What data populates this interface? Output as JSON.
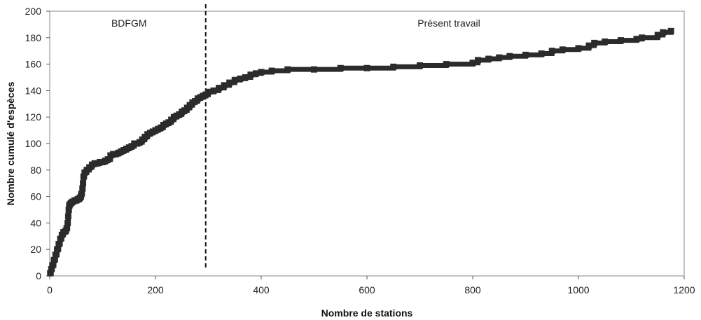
{
  "chart_data": {
    "type": "line",
    "xlabel": "Nombre de stations",
    "ylabel": "Nombre cumulé d'espèces",
    "xlim": [
      0,
      1200
    ],
    "ylim": [
      0,
      200
    ],
    "x_ticks": [
      0,
      200,
      400,
      600,
      800,
      1000,
      1200
    ],
    "y_ticks": [
      0,
      20,
      40,
      60,
      80,
      100,
      120,
      140,
      160,
      180,
      200
    ],
    "grid": false,
    "divider_x": 295,
    "annotations": [
      {
        "text": "BDFGM",
        "x": 150,
        "y": 191
      },
      {
        "text": "Présent travail",
        "x": 755,
        "y": 191
      }
    ],
    "series": [
      {
        "color": "#2b2b2b",
        "marker": "square",
        "x": [
          1,
          3,
          5,
          8,
          11,
          14,
          17,
          20,
          23,
          26,
          30,
          32,
          34,
          35,
          36,
          37,
          38,
          40,
          43,
          47,
          50,
          53,
          55,
          57,
          59,
          60,
          62,
          63,
          64,
          66,
          70,
          75,
          80,
          85,
          90,
          95,
          100,
          105,
          110,
          115,
          120,
          125,
          130,
          135,
          140,
          145,
          150,
          155,
          160,
          165,
          170,
          175,
          180,
          185,
          190,
          195,
          200,
          205,
          210,
          215,
          220,
          225,
          230,
          235,
          240,
          245,
          250,
          255,
          260,
          265,
          270,
          275,
          280,
          285,
          290,
          295,
          300,
          310,
          320,
          330,
          340,
          350,
          360,
          370,
          380,
          390,
          400,
          420,
          450,
          500,
          550,
          600,
          650,
          700,
          750,
          800,
          810,
          830,
          850,
          870,
          900,
          930,
          950,
          970,
          1000,
          1020,
          1030,
          1050,
          1080,
          1110,
          1120,
          1150,
          1160,
          1175
        ],
        "y": [
          2,
          5,
          8,
          12,
          16,
          20,
          24,
          28,
          31,
          33,
          34,
          36,
          40,
          45,
          50,
          53,
          54,
          55,
          56,
          57,
          57,
          58,
          58,
          59,
          60,
          62,
          66,
          70,
          75,
          78,
          80,
          82,
          84,
          85,
          85,
          86,
          86,
          87,
          88,
          91,
          92,
          92,
          93,
          94,
          95,
          96,
          97,
          98,
          100,
          100,
          101,
          103,
          105,
          107,
          108,
          109,
          110,
          111,
          112,
          114,
          115,
          116,
          118,
          120,
          121,
          122,
          124,
          125,
          127,
          129,
          131,
          132,
          134,
          135,
          136,
          137,
          139,
          140,
          142,
          144,
          146,
          148,
          149,
          150,
          152,
          153,
          154,
          155,
          156,
          156,
          157,
          157,
          158,
          159,
          160,
          161,
          163,
          164,
          165,
          166,
          167,
          168,
          170,
          171,
          172,
          174,
          176,
          177,
          178,
          179,
          180,
          182,
          184,
          185
        ]
      }
    ]
  }
}
